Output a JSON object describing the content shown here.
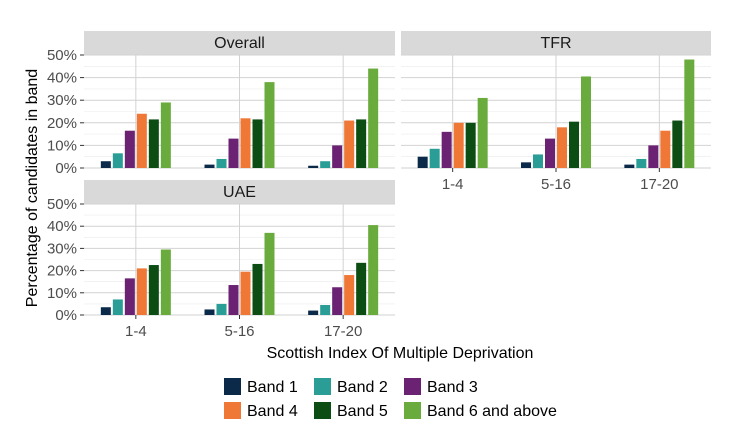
{
  "chart_data": {
    "type": "bar",
    "xlabel": "Scottish Index Of Multiple Deprivation",
    "ylabel": "Percentage of candidates in band",
    "ylim": [
      0,
      50
    ],
    "yticks": [
      "0%",
      "10%",
      "20%",
      "30%",
      "40%",
      "50%"
    ],
    "categories": [
      "1-4",
      "5-16",
      "17-20"
    ],
    "legend": {
      "placement": "bottom",
      "items": [
        {
          "name": "Band 1",
          "color": "#0b2a4a"
        },
        {
          "name": "Band 2",
          "color": "#2a9d96"
        },
        {
          "name": "Band 3",
          "color": "#6b2272"
        },
        {
          "name": "Band 4",
          "color": "#f07836"
        },
        {
          "name": "Band 5",
          "color": "#0b4d12"
        },
        {
          "name": "Band 6 and above",
          "color": "#6aab3d"
        }
      ]
    },
    "panels": [
      {
        "title": "Overall",
        "series": [
          {
            "name": "Band 1",
            "values": [
              3,
              1.5,
              1
            ]
          },
          {
            "name": "Band 2",
            "values": [
              6.5,
              4,
              3
            ]
          },
          {
            "name": "Band 3",
            "values": [
              16.5,
              13,
              10
            ]
          },
          {
            "name": "Band 4",
            "values": [
              24,
              22,
              21
            ]
          },
          {
            "name": "Band 5",
            "values": [
              21.5,
              21.5,
              21.5
            ]
          },
          {
            "name": "Band 6 and above",
            "values": [
              29,
              38,
              44
            ]
          }
        ]
      },
      {
        "title": "TFR",
        "series": [
          {
            "name": "Band 1",
            "values": [
              5,
              2.5,
              1.5
            ]
          },
          {
            "name": "Band 2",
            "values": [
              8.5,
              6,
              4
            ]
          },
          {
            "name": "Band 3",
            "values": [
              16,
              13,
              10
            ]
          },
          {
            "name": "Band 4",
            "values": [
              20,
              18,
              16.5
            ]
          },
          {
            "name": "Band 5",
            "values": [
              20,
              20.5,
              21
            ]
          },
          {
            "name": "Band 6 and above",
            "values": [
              31,
              40.5,
              48
            ]
          }
        ]
      },
      {
        "title": "UAE",
        "series": [
          {
            "name": "Band 1",
            "values": [
              3.5,
              2.5,
              2
            ]
          },
          {
            "name": "Band 2",
            "values": [
              7,
              5,
              4.5
            ]
          },
          {
            "name": "Band 3",
            "values": [
              16.5,
              13.5,
              12.5
            ]
          },
          {
            "name": "Band 4",
            "values": [
              21,
              19.5,
              18
            ]
          },
          {
            "name": "Band 5",
            "values": [
              22.5,
              23,
              23.5
            ]
          },
          {
            "name": "Band 6 and above",
            "values": [
              29.5,
              37,
              40.5
            ]
          }
        ]
      }
    ]
  }
}
